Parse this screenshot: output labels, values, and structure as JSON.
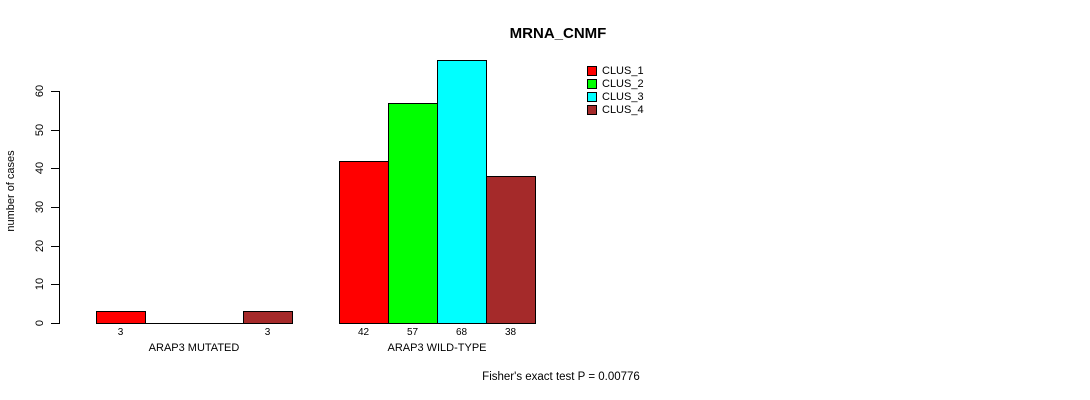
{
  "chart_data": {
    "type": "bar",
    "title": "MRNA_CNMF",
    "xlabel": "",
    "ylabel": "number of cases",
    "ylim": [
      0,
      60
    ],
    "yticks": [
      0,
      10,
      20,
      30,
      40,
      50,
      60
    ],
    "grid": false,
    "legend_position": "top-right",
    "series": [
      {
        "name": "CLUS_1",
        "color": "#ff0000"
      },
      {
        "name": "CLUS_2",
        "color": "#00ff00"
      },
      {
        "name": "CLUS_3",
        "color": "#00ffff"
      },
      {
        "name": "CLUS_4",
        "color": "#a52a2a"
      }
    ],
    "groups": [
      {
        "label": "ARAP3 MUTATED",
        "values": [
          3,
          0,
          0,
          3
        ],
        "bar_labels": [
          "3",
          "",
          "",
          "3"
        ]
      },
      {
        "label": "ARAP3 WILD-TYPE",
        "values": [
          42,
          57,
          68,
          38
        ],
        "bar_labels": [
          "42",
          "57",
          "68",
          "38"
        ]
      }
    ],
    "annotation": "Fisher's exact test P = 0.00776",
    "colors": {
      "axis": "#000000",
      "text": "#000000",
      "background": "#ffffff"
    }
  }
}
